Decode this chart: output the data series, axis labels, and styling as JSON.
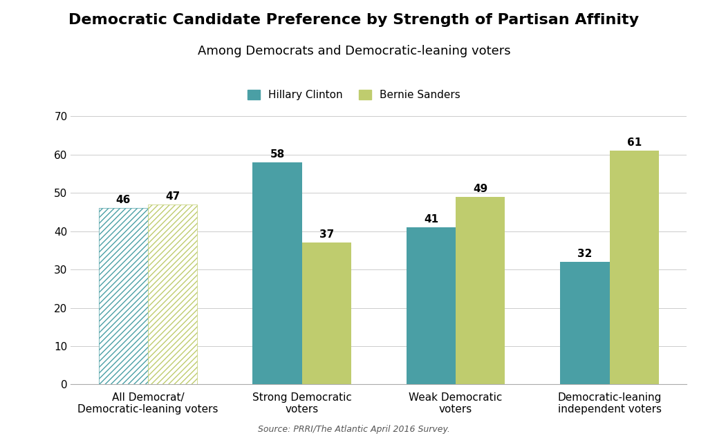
{
  "title": "Democratic Candidate Preference by Strength of Partisan Affinity",
  "subtitle": "Among Democrats and Democratic-leaning voters",
  "categories": [
    "All Democrat/\nDemocratic-leaning voters",
    "Strong Democratic\nvoters",
    "Weak Democratic\nvoters",
    "Democratic-leaning\nindependent voters"
  ],
  "clinton_values": [
    46,
    58,
    41,
    32
  ],
  "sanders_values": [
    47,
    37,
    49,
    61
  ],
  "clinton_color": "#4a9fa5",
  "sanders_color": "#bfcc6e",
  "clinton_label": "Hillary Clinton",
  "sanders_label": "Bernie Sanders",
  "ylim": [
    0,
    70
  ],
  "yticks": [
    0,
    10,
    20,
    30,
    40,
    50,
    60,
    70
  ],
  "source_text": "Source: PRRI/The Atlantic April 2016 Survey.",
  "background_color": "#ffffff",
  "bar_width": 0.32,
  "value_fontsize": 11,
  "title_fontsize": 16,
  "subtitle_fontsize": 13,
  "label_fontsize": 11,
  "tick_fontsize": 11,
  "legend_fontsize": 11
}
